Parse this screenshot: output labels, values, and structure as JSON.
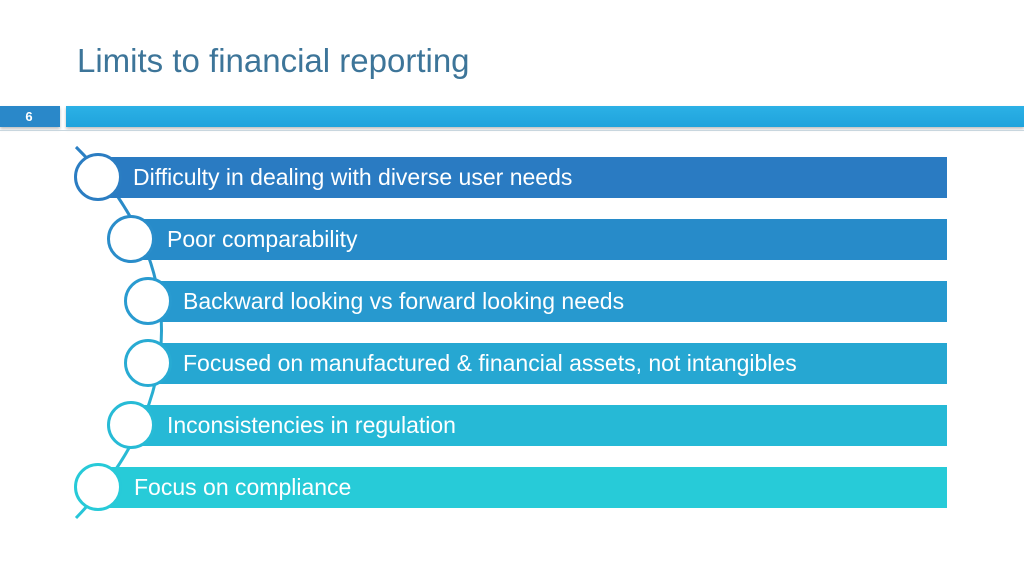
{
  "slide": {
    "title": "Limits to financial reporting",
    "page_number": "6"
  },
  "items": [
    {
      "label": "Difficulty in dealing with diverse user needs",
      "color": "#2a7bc2"
    },
    {
      "label": "Poor comparability",
      "color": "#278bc9"
    },
    {
      "label": "Backward looking vs forward looking needs",
      "color": "#2799cf"
    },
    {
      "label": "Focused on manufactured & financial assets, not intangibles",
      "color": "#26a7d2"
    },
    {
      "label": "Inconsistencies in regulation",
      "color": "#26b9d6"
    },
    {
      "label": "Focus on compliance",
      "color": "#27cbd8"
    }
  ]
}
